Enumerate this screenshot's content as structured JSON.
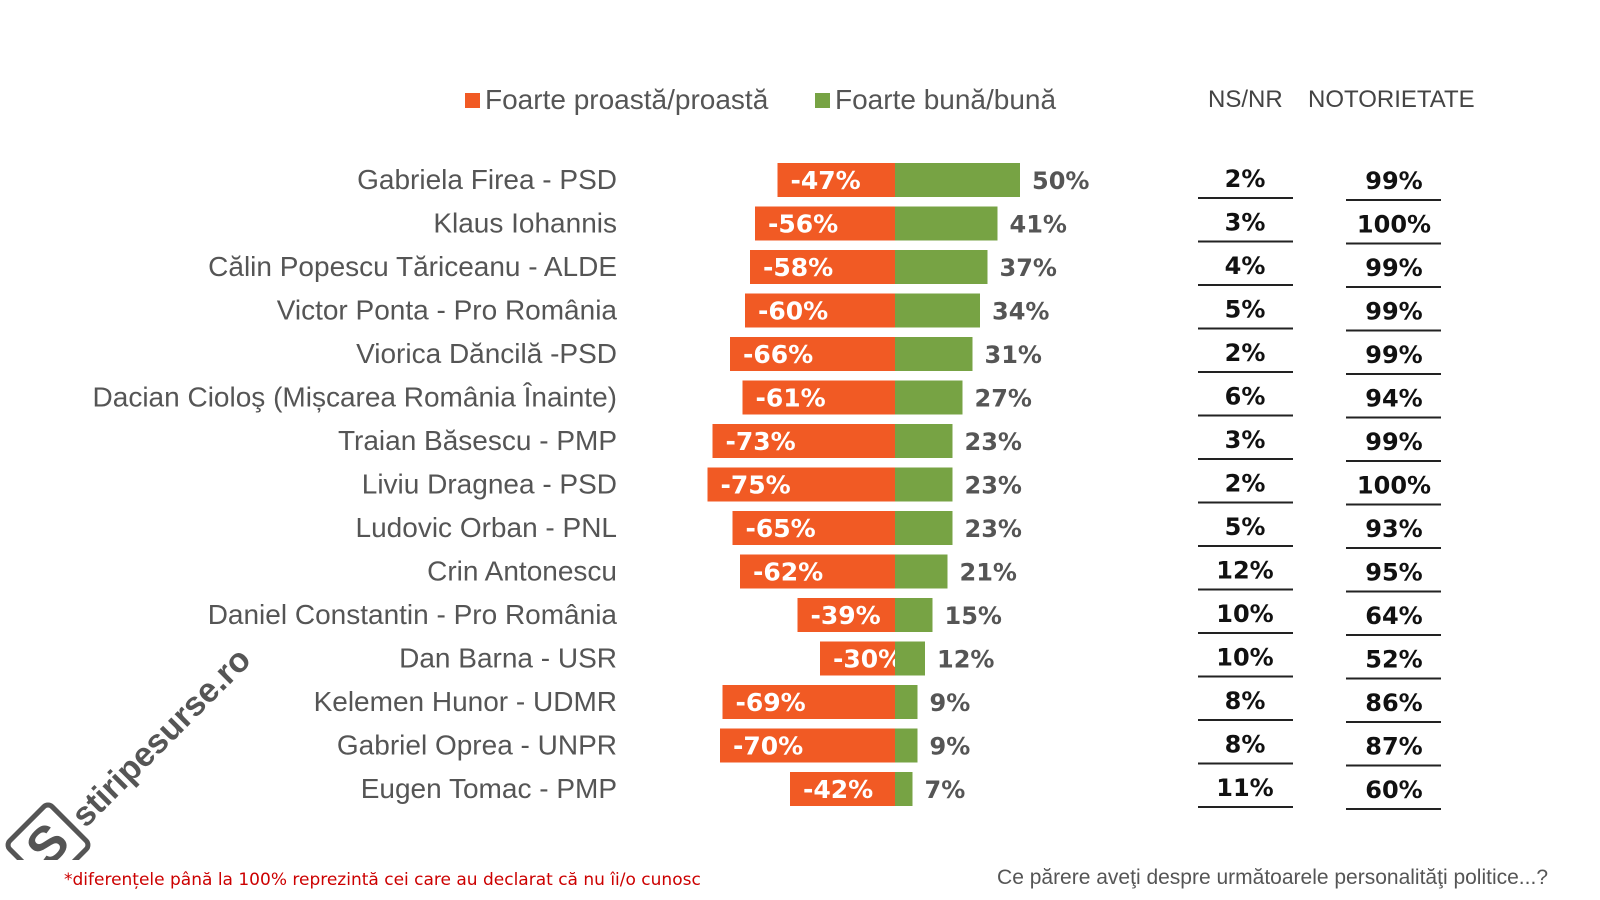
{
  "legend": {
    "negative_label": "Foarte proastă/proastă",
    "positive_label": "Foarte bună/bună",
    "negative_color": "#f15a24",
    "positive_color": "#77a344"
  },
  "columns": {
    "nsnr_header": "NS/NR",
    "notorietate_header": "NOTORIETATE"
  },
  "footnote": "*diferențele până la 100% reprezintă cei care au declarat că nu îi/o cunosc",
  "question": "Ce părere aveţi despre următoarele personalităţi politice...?",
  "watermark": {
    "text": "stiripesurse.ro",
    "logo_letter": "S"
  },
  "chart_data": {
    "type": "bar",
    "orientation": "horizontal-diverging",
    "categories": [
      "Gabriela Firea - PSD",
      "Klaus Iohannis",
      "Călin Popescu Tăriceanu - ALDE",
      "Victor Ponta - Pro România",
      "Viorica Dăncilă -PSD",
      "Dacian Cioloş (Mișcarea România Înainte)",
      "Traian Băsescu - PMP",
      "Liviu Dragnea - PSD",
      "Ludovic Orban - PNL",
      "Crin Antonescu",
      "Daniel Constantin - Pro România",
      "Dan Barna - USR",
      "Kelemen Hunor - UDMR",
      "Gabriel Oprea - UNPR",
      "Eugen Tomac - PMP"
    ],
    "series": [
      {
        "name": "Foarte proastă/proastă",
        "values": [
          -47,
          -56,
          -58,
          -60,
          -66,
          -61,
          -73,
          -75,
          -65,
          -62,
          -39,
          -30,
          -69,
          -70,
          -42
        ],
        "labels": [
          "-47%",
          "-56%",
          "-58%",
          "-60%",
          "-66%",
          "-61%",
          "-73%",
          "-75%",
          "-65%",
          "-62%",
          "-39%",
          "-30%",
          "-69%",
          "-70%",
          "-42%"
        ]
      },
      {
        "name": "Foarte bună/bună",
        "values": [
          50,
          41,
          37,
          34,
          31,
          27,
          23,
          23,
          23,
          21,
          15,
          12,
          9,
          9,
          7
        ],
        "labels": [
          "50%",
          "41%",
          "37%",
          "34%",
          "31%",
          "27%",
          "23%",
          "23%",
          "23%",
          "21%",
          "15%",
          "12%",
          "9%",
          "9%",
          "7%"
        ]
      }
    ],
    "table": {
      "ns_nr": [
        "2%",
        "3%",
        "4%",
        "5%",
        "2%",
        "6%",
        "3%",
        "2%",
        "5%",
        "12%",
        "10%",
        "10%",
        "8%",
        "8%",
        "11%"
      ],
      "notorietate": [
        "99%",
        "100%",
        "99%",
        "99%",
        "99%",
        "94%",
        "99%",
        "100%",
        "93%",
        "95%",
        "64%",
        "52%",
        "86%",
        "87%",
        "60%"
      ]
    },
    "xlim": [
      -75,
      50
    ]
  }
}
